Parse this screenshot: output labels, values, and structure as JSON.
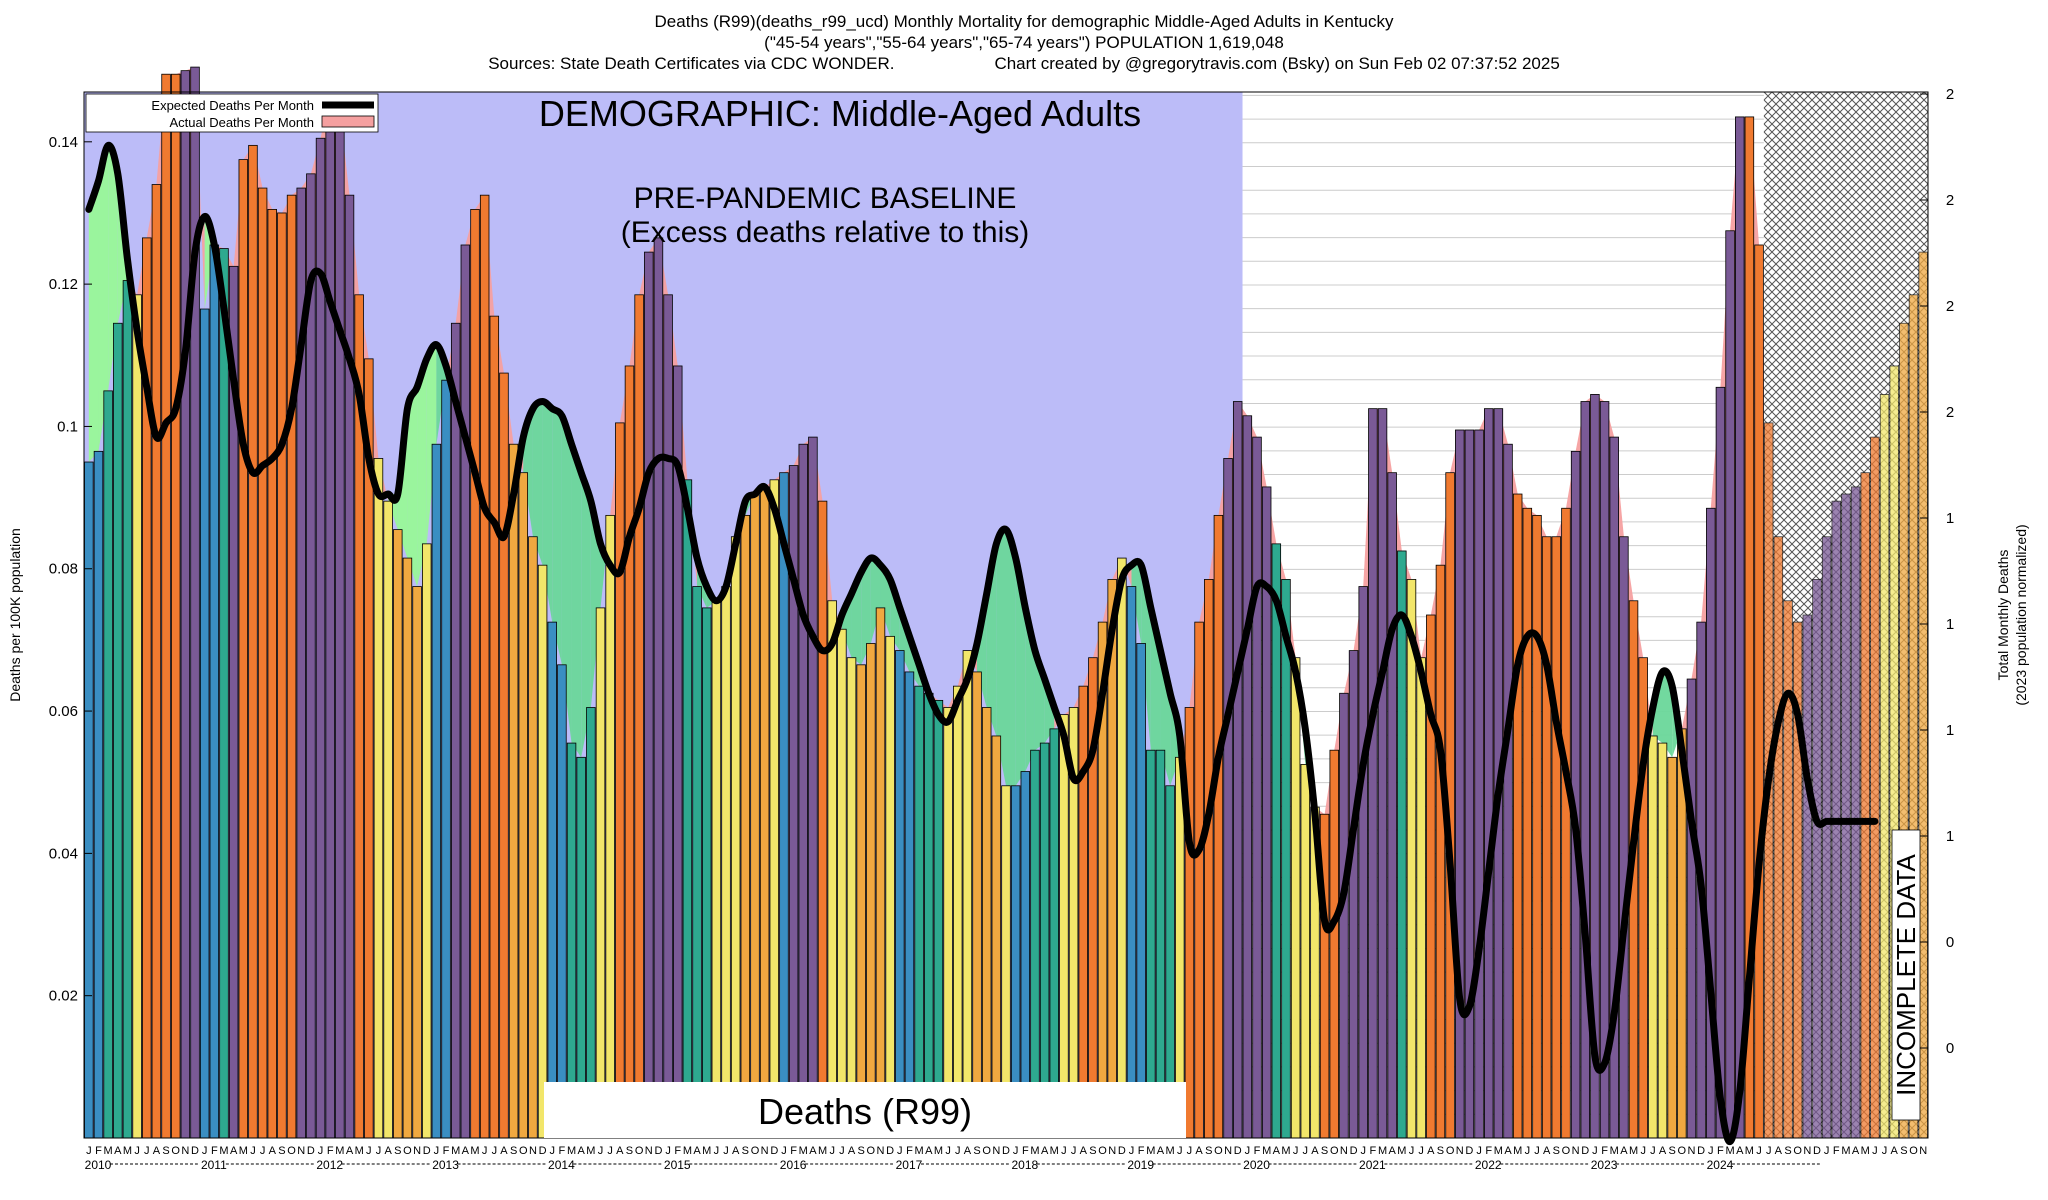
{
  "header": {
    "title": "Deaths (R99)(deaths_r99_ucd) Monthly Mortality for demographic Middle-Aged Adults in Kentucky",
    "subtitle": "(\"45-54 years\",\"55-64 years\",\"65-74 years\") POPULATION 1,619,048",
    "sources": "Sources: State Death Certificates via CDC WONDER.",
    "credit": "Chart created by @gregorytravis.com (Bsky) on Sun Feb 02 07:37:52 2025"
  },
  "chart_data": {
    "type": "bar",
    "ylabel": "Deaths per 100K population",
    "y2label_line1": "Total Monthly Deaths",
    "y2label_line2": "(2023 population normalized)",
    "ylim": [
      0,
      0.147
    ],
    "y_ticks": [
      "0.02",
      "0.04",
      "0.06",
      "0.08",
      "0.1",
      "0.12",
      "0.14"
    ],
    "y2_ticks": [
      "0",
      "0",
      "1",
      "1",
      "1",
      "1",
      "2",
      "2",
      "2",
      "2"
    ],
    "years": [
      "2010",
      "2011",
      "2012",
      "2013",
      "2014",
      "2015",
      "2016",
      "2017",
      "2018",
      "2019",
      "2020",
      "2021",
      "2022",
      "2023",
      "2024"
    ],
    "month_letters": [
      "J",
      "F",
      "M",
      "A",
      "M",
      "J",
      "J",
      "A",
      "S",
      "O",
      "N",
      "D"
    ],
    "legend": {
      "expected": "Expected Deaths Per Month",
      "actual": "Actual Deaths Per Month"
    },
    "annotations": {
      "demographic": "DEMOGRAPHIC: Middle-Aged Adults",
      "baseline_line1": "PRE-PANDEMIC BASELINE",
      "baseline_line2": "(Excess deaths relative to this)",
      "cause": "Deaths (R99)",
      "incomplete": "INCOMPLETE DATA"
    },
    "baseline_end_month_index": 120,
    "incomplete_start_month_index": 174,
    "colors": {
      "baseline_bg": "#bcbcf8",
      "deficit_fill": "#98f898",
      "deficit_fill_late": "#6ad79a",
      "excess_fill": "#f5a0a0",
      "expected_line": "#000000",
      "bar_blue": "#3a8ec2",
      "bar_teal": "#2ea98f",
      "bar_yellow": "#f2e66a",
      "bar_orange": "#f0a840",
      "excess_orange": "#f07a30",
      "excess_purple": "#7a5a96"
    },
    "actual": [
      0.095,
      0.0965,
      0.105,
      0.1145,
      0.1205,
      0.1185,
      0.1265,
      0.134,
      0.1495,
      0.1495,
      0.15,
      0.1505,
      0.1165,
      0.1255,
      0.125,
      0.1225,
      0.1375,
      0.1395,
      0.1335,
      0.1305,
      0.13,
      0.1325,
      0.1335,
      0.1355,
      0.1405,
      0.1465,
      0.1445,
      0.1325,
      0.1185,
      0.1095,
      0.0955,
      0.0895,
      0.0855,
      0.0815,
      0.0775,
      0.0835,
      0.0975,
      0.1065,
      0.1145,
      0.1255,
      0.1305,
      0.1325,
      0.1155,
      0.1075,
      0.0975,
      0.0935,
      0.0845,
      0.0805,
      0.0725,
      0.0665,
      0.0555,
      0.0535,
      0.0605,
      0.0745,
      0.0875,
      0.1005,
      0.1085,
      0.1185,
      0.1245,
      0.1265,
      0.1185,
      0.1085,
      0.0925,
      0.0775,
      0.0745,
      0.0755,
      0.0775,
      0.0845,
      0.0875,
      0.0905,
      0.0915,
      0.0925,
      0.0935,
      0.0945,
      0.0975,
      0.0985,
      0.0895,
      0.0755,
      0.0715,
      0.0675,
      0.0665,
      0.0695,
      0.0745,
      0.0705,
      0.0685,
      0.0655,
      0.0635,
      0.0625,
      0.0615,
      0.0605,
      0.0635,
      0.0685,
      0.0655,
      0.0605,
      0.0565,
      0.0495,
      0.0495,
      0.0515,
      0.0545,
      0.0555,
      0.0575,
      0.0595,
      0.0605,
      0.0635,
      0.0675,
      0.0725,
      0.0785,
      0.0815,
      0.0775,
      0.0695,
      0.0545,
      0.0545,
      0.0495,
      0.0535,
      0.0605,
      0.0725,
      0.0785,
      0.0875,
      0.0955,
      0.1035,
      0.1015,
      0.0985,
      0.0915,
      0.0835,
      0.0785,
      0.0675,
      0.0525,
      0.0465,
      0.0455,
      0.0545,
      0.0625,
      0.0685,
      0.0775,
      0.1025,
      0.1025,
      0.0935,
      0.0825,
      0.0785,
      0.0675,
      0.0735,
      0.0805,
      0.0935,
      0.0995,
      0.0995,
      0.0995,
      0.1025,
      0.1025,
      0.0975,
      0.0905,
      0.0885,
      0.0875,
      0.0845,
      0.0845,
      0.0885,
      0.0965,
      0.1035,
      0.1045,
      0.1035,
      0.0985,
      0.0845,
      0.0755,
      0.0675,
      0.0565,
      0.0555,
      0.0535,
      0.0575,
      0.0645,
      0.0725,
      0.0885,
      0.1055,
      0.1275,
      0.1435,
      0.1435,
      0.1255,
      0.1005,
      0.0845,
      0.0755,
      0.0725,
      0.0735,
      0.0785,
      0.0845,
      0.0895,
      0.0905,
      0.0915,
      0.0935,
      0.0985,
      0.1045,
      0.1085,
      0.1145,
      0.1185,
      0.1245
    ],
    "expected": [
      0.1305,
      0.1345,
      0.1395,
      0.1355,
      0.1235,
      0.1135,
      0.1055,
      0.0985,
      0.1005,
      0.1025,
      0.1105,
      0.1245,
      0.1295,
      0.1255,
      0.1165,
      0.1065,
      0.0975,
      0.0935,
      0.0945,
      0.0955,
      0.0975,
      0.1025,
      0.1115,
      0.1205,
      0.1215,
      0.1175,
      0.1135,
      0.1095,
      0.1045,
      0.0955,
      0.0905,
      0.0905,
      0.0905,
      0.1025,
      0.1055,
      0.1095,
      0.1115,
      0.1085,
      0.1035,
      0.0985,
      0.0935,
      0.0885,
      0.0865,
      0.0845,
      0.0905,
      0.0985,
      0.1025,
      0.1035,
      0.1025,
      0.1015,
      0.0975,
      0.0935,
      0.0895,
      0.0835,
      0.0805,
      0.0795,
      0.0845,
      0.0885,
      0.0935,
      0.0955,
      0.0955,
      0.0945,
      0.0885,
      0.0815,
      0.0775,
      0.0755,
      0.0775,
      0.0835,
      0.0895,
      0.0905,
      0.0915,
      0.0885,
      0.0835,
      0.0785,
      0.0735,
      0.0705,
      0.0685,
      0.0695,
      0.0735,
      0.0765,
      0.0795,
      0.0815,
      0.0805,
      0.0785,
      0.0745,
      0.0705,
      0.0665,
      0.0625,
      0.0595,
      0.0585,
      0.0615,
      0.0645,
      0.0695,
      0.0765,
      0.0835,
      0.0855,
      0.0815,
      0.0745,
      0.0685,
      0.0645,
      0.0605,
      0.0565,
      0.0505,
      0.0515,
      0.0545,
      0.0625,
      0.0715,
      0.0785,
      0.0805,
      0.0805,
      0.0745,
      0.0685,
      0.0625,
      0.0565,
      0.0415,
      0.0405,
      0.0455,
      0.0535,
      0.0595,
      0.0655,
      0.0715,
      0.0775,
      0.0775,
      0.0755,
      0.0705,
      0.0655,
      0.0575,
      0.0455,
      0.0305,
      0.0305,
      0.0345,
      0.0435,
      0.0525,
      0.0595,
      0.0655,
      0.0715,
      0.0735,
      0.0705,
      0.0655,
      0.0595,
      0.0545,
      0.0385,
      0.0195,
      0.0185,
      0.0265,
      0.0375,
      0.0485,
      0.0575,
      0.0665,
      0.0705,
      0.0705,
      0.0665,
      0.0585,
      0.0515,
      0.0435,
      0.0285,
      0.0115,
      0.0105,
      0.0175,
      0.0295,
      0.0415,
      0.0525,
      0.0605,
      0.0655,
      0.0635,
      0.0545,
      0.0445,
      0.0355,
      0.0205,
      0.0055,
      -0.0005,
      0.0065,
      0.0225,
      0.0385,
      0.0505,
      0.0585,
      0.0625,
      0.0595,
      0.0505,
      0.0445,
      0.0445,
      0.0445,
      0.0445,
      0.0445,
      0.0445,
      0.0445
    ]
  }
}
